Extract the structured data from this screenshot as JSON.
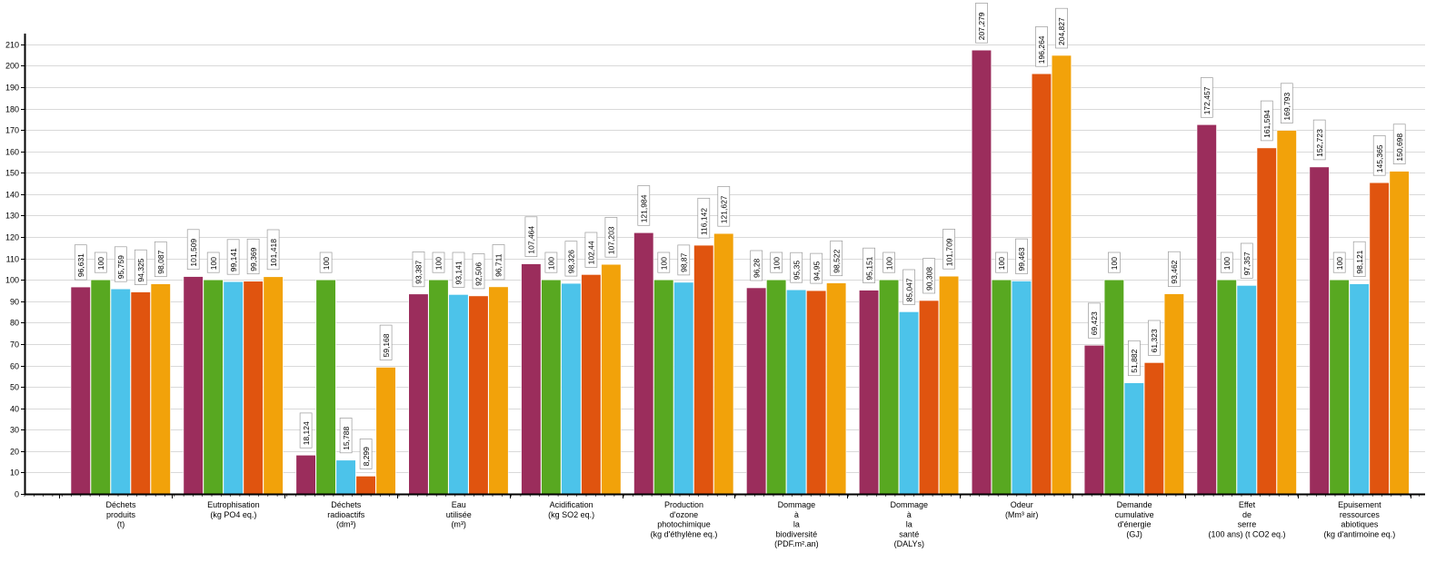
{
  "chart_data": {
    "type": "bar",
    "title": "",
    "xlabel": "",
    "ylabel": "",
    "ylim": [
      0,
      215
    ],
    "yticks": [
      0,
      10,
      20,
      30,
      40,
      50,
      60,
      70,
      80,
      90,
      100,
      110,
      120,
      130,
      140,
      150,
      160,
      170,
      180,
      190,
      200,
      210
    ],
    "grid": true,
    "legend": "none",
    "categories": [
      [
        "Déchets",
        "produits",
        "(t)"
      ],
      [
        "Eutrophisation",
        "(kg PO4 eq.)"
      ],
      [
        "Déchets",
        "radioactifs",
        "(dm³)"
      ],
      [
        "Eau",
        "utilisée",
        "(m³)"
      ],
      [
        "Acidification",
        "(kg SO2 eq.)"
      ],
      [
        "Production",
        "d'ozone",
        "photochimique",
        "(kg d'éthylène eq.)"
      ],
      [
        "Dommage",
        "à",
        "la",
        "biodiversité",
        "(PDF.m².an)"
      ],
      [
        "Dommage",
        "à",
        "la",
        "santé",
        "(DALYs)"
      ],
      [
        "Odeur",
        "(Mm³ air)"
      ],
      [
        "Demande",
        "cumulative",
        "d'énergie",
        "(GJ)"
      ],
      [
        "Effet",
        "de",
        "serre",
        "(100 ans) (t CO2 eq.)"
      ],
      [
        "Epuisement",
        "ressources",
        "abiotiques",
        "(kg d'antimoine eq.)"
      ]
    ],
    "series": [
      {
        "color": "#9b2d5c",
        "values": [
          96.631,
          101.509,
          18.124,
          93.387,
          107.464,
          121.984,
          96.28,
          95.151,
          207.279,
          69.423,
          172.457,
          152.723
        ]
      },
      {
        "color": "#58a821",
        "values": [
          100,
          100,
          100,
          100,
          100,
          100,
          100,
          100,
          100,
          100,
          100,
          100
        ]
      },
      {
        "color": "#4cc3ea",
        "values": [
          95.759,
          99.141,
          15.788,
          93.141,
          98.326,
          98.87,
          95.35,
          85.047,
          99.463,
          51.882,
          97.357,
          98.121
        ]
      },
      {
        "color": "#e0540f",
        "values": [
          94.325,
          99.369,
          8.299,
          92.506,
          102.44,
          116.142,
          94.95,
          90.308,
          196.264,
          61.323,
          161.594,
          145.365
        ]
      },
      {
        "color": "#f2a20a",
        "values": [
          98.087,
          101.418,
          59.168,
          96.711,
          107.203,
          121.627,
          98.522,
          101.709,
          204.827,
          93.462,
          169.793,
          150.698
        ]
      }
    ],
    "data_labels": [
      [
        "96,631",
        "100",
        "95,759",
        "94,325",
        "98,087"
      ],
      [
        "101,509",
        "100",
        "99,141",
        "99,369",
        "101,418"
      ],
      [
        "18,124",
        "100",
        "15,788",
        "8,299",
        "59,168"
      ],
      [
        "93,387",
        "100",
        "93,141",
        "92,506",
        "96,711"
      ],
      [
        "107,464",
        "100",
        "98,326",
        "102,44",
        "107,203"
      ],
      [
        "121,984",
        "100",
        "98,87",
        "116,142",
        "121,627"
      ],
      [
        "96,28",
        "100",
        "95,35",
        "94,95",
        "98,522"
      ],
      [
        "95,151",
        "100",
        "85,047",
        "90,308",
        "101,709"
      ],
      [
        "207,279",
        "100",
        "99,463",
        "196,264",
        "204,827"
      ],
      [
        "69,423",
        "100",
        "51,882",
        "61,323",
        "93,462"
      ],
      [
        "172,457",
        "100",
        "97,357",
        "161,594",
        "169,793"
      ],
      [
        "152,723",
        "100",
        "98,121",
        "145,365",
        "150,698"
      ]
    ]
  }
}
